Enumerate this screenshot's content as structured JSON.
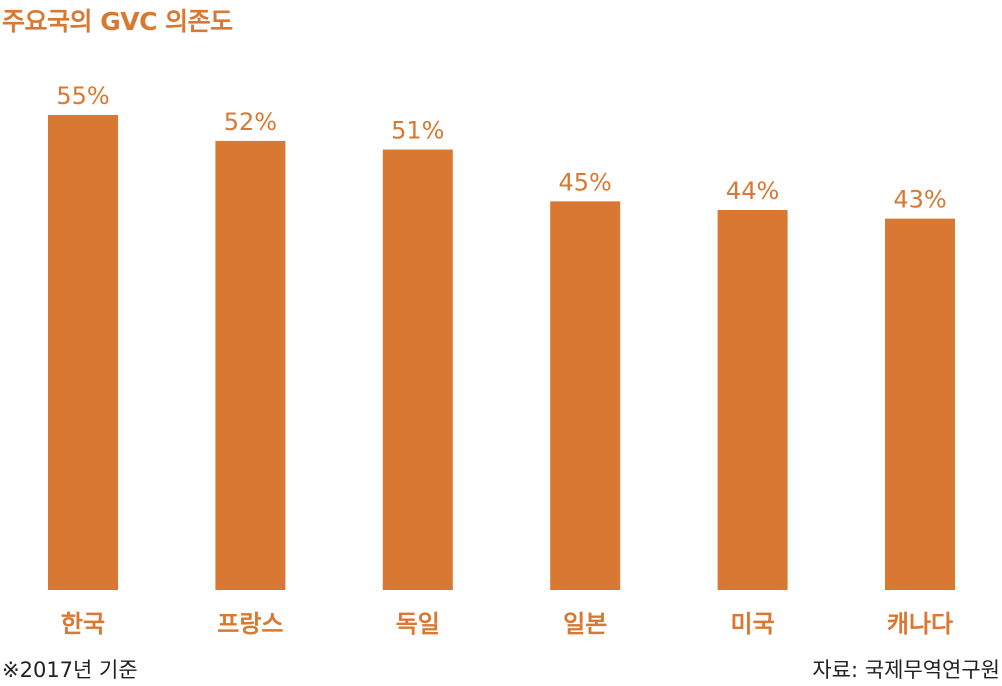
{
  "title": "주요국의 GVC 의존도",
  "footnote": "※2017년 기준",
  "source": "자료: 국제무역연구원",
  "colors": {
    "bar": "#d97832",
    "text": "#d97832",
    "note": "#222222"
  },
  "chart_data": {
    "type": "bar",
    "title": "주요국의 GVC 의존도",
    "categories": [
      "한국",
      "프랑스",
      "독일",
      "일본",
      "미국",
      "캐나다"
    ],
    "values": [
      55,
      52,
      51,
      45,
      44,
      43
    ],
    "value_labels": [
      "55%",
      "52%",
      "51%",
      "45%",
      "44%",
      "43%"
    ],
    "unit": "%",
    "ylim": [
      0,
      55
    ],
    "grid": false,
    "legend": "none"
  }
}
